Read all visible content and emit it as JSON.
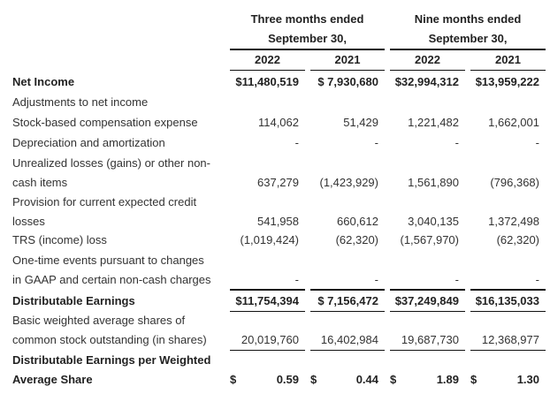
{
  "header": {
    "group1_line1": "Three months ended",
    "group1_line2": "September 30,",
    "group2_line1": "Nine months ended",
    "group2_line2": "September 30,",
    "years": [
      "2022",
      "2021",
      "2022",
      "2021"
    ]
  },
  "rows": [
    {
      "label": [
        "Net Income"
      ],
      "bold": true,
      "values": [
        "$11,480,519",
        "$ 7,930,680",
        "$32,994,312",
        "$13,959,222"
      ]
    },
    {
      "label": [
        "Adjustments to net income"
      ],
      "bold": false,
      "values": []
    },
    {
      "label": [
        "Stock-based compensation expense"
      ],
      "bold": false,
      "values": [
        "114,062",
        "51,429",
        "1,221,482",
        "1,662,001"
      ]
    },
    {
      "label": [
        "Depreciation and amortization"
      ],
      "bold": false,
      "values": [
        "-",
        "-",
        "-",
        "-"
      ]
    },
    {
      "label": [
        "Unrealized losses (gains) or other non-",
        "cash items"
      ],
      "bold": false,
      "values": [
        "637,279",
        "(1,423,929)",
        "1,561,890",
        "(796,368)"
      ]
    },
    {
      "label": [
        "Provision for current expected credit",
        "losses"
      ],
      "bold": false,
      "values": [
        "541,958",
        "660,612",
        "3,040,135",
        "1,372,498"
      ]
    },
    {
      "label": [
        "TRS (income) loss"
      ],
      "bold": false,
      "values": [
        "(1,019,424)",
        "(62,320)",
        "(1,567,970)",
        "(62,320)"
      ]
    },
    {
      "label": [
        "One-time events pursuant to changes",
        "in GAAP and certain non-cash charges"
      ],
      "bold": false,
      "values": [
        "-",
        "-",
        "-",
        "-"
      ]
    },
    {
      "label": [
        "Distributable Earnings"
      ],
      "bold": true,
      "values": [
        "$11,754,394",
        "$ 7,156,472",
        "$37,249,849",
        "$16,135,033"
      ]
    },
    {
      "label": [
        "Basic weighted average shares of",
        "common stock outstanding (in shares)"
      ],
      "bold": false,
      "values": [
        "20,019,760",
        "16,402,984",
        "19,687,730",
        "12,368,977"
      ]
    },
    {
      "label": [
        "Distributable Earnings per Weighted",
        "Average Share"
      ],
      "bold": true,
      "currency": "$",
      "values": [
        "0.59",
        "0.44",
        "1.89",
        "1.30"
      ]
    }
  ]
}
